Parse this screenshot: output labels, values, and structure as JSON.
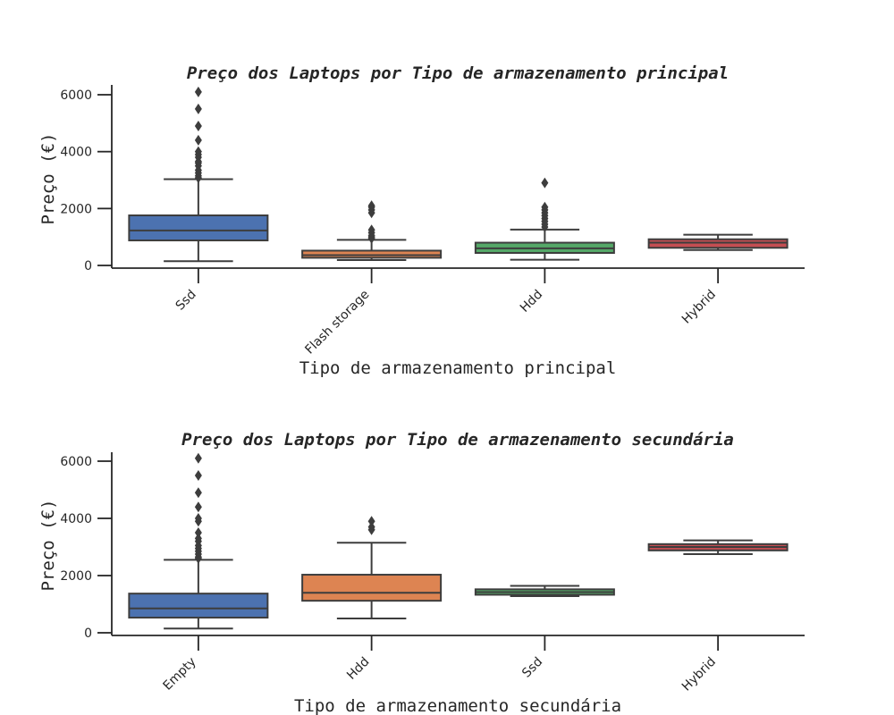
{
  "chart_data": [
    {
      "type": "box",
      "title": "Preço dos Laptops por Tipo de armazenamento principal",
      "xlabel": "Tipo de armazenamento principal",
      "ylabel": "Preço (€)",
      "ylim": [
        -100,
        6400
      ],
      "yticks": [
        0,
        2000,
        4000,
        6000
      ],
      "categories": [
        "Ssd",
        "Flash storage",
        "Hdd",
        "Hybrid"
      ],
      "colors": [
        "#4c72b0",
        "#dd8452",
        "#55a868",
        "#c44e52"
      ],
      "boxes": [
        {
          "whislo": 150,
          "q1": 880,
          "med": 1230,
          "q3": 1760,
          "whishi": 3030,
          "fliers": [
            3080,
            3150,
            3250,
            3350,
            3500,
            3600,
            3650,
            3800,
            3900,
            4000,
            4400,
            4900,
            5500,
            6100
          ]
        },
        {
          "whislo": 190,
          "q1": 270,
          "med": 360,
          "q3": 520,
          "whishi": 900,
          "fliers": [
            950,
            1000,
            1050,
            1150,
            1250,
            1850,
            1950,
            2050,
            2100
          ]
        },
        {
          "whislo": 200,
          "q1": 440,
          "med": 600,
          "q3": 800,
          "whishi": 1260,
          "fliers": [
            1350,
            1450,
            1550,
            1650,
            1750,
            1850,
            1950,
            2050,
            2900
          ]
        },
        {
          "whislo": 540,
          "q1": 620,
          "med": 800,
          "q3": 920,
          "whishi": 1080,
          "fliers": []
        }
      ]
    },
    {
      "type": "box",
      "title": "Preço dos Laptops por Tipo de armazenamento secundária",
      "xlabel": "Tipo de armazenamento secundária",
      "ylabel": "Preço (€)",
      "ylim": [
        -100,
        6400
      ],
      "yticks": [
        0,
        2000,
        4000,
        6000
      ],
      "categories": [
        "Empty",
        "Hdd",
        "Ssd",
        "Hybrid"
      ],
      "colors": [
        "#4c72b0",
        "#dd8452",
        "#55a868",
        "#c44e52"
      ],
      "boxes": [
        {
          "whislo": 150,
          "q1": 530,
          "med": 850,
          "q3": 1370,
          "whishi": 2550,
          "fliers": [
            2600,
            2650,
            2750,
            2850,
            2950,
            3050,
            3200,
            3300,
            3500,
            3900,
            4000,
            4400,
            4900,
            5500,
            6100
          ]
        },
        {
          "whislo": 500,
          "q1": 1120,
          "med": 1400,
          "q3": 2030,
          "whishi": 3150,
          "fliers": [
            3600,
            3700,
            3900
          ]
        },
        {
          "whislo": 1280,
          "q1": 1330,
          "med": 1420,
          "q3": 1520,
          "whishi": 1640,
          "fliers": []
        },
        {
          "whislo": 2750,
          "q1": 2880,
          "med": 3000,
          "q3": 3100,
          "whishi": 3230,
          "fliers": []
        }
      ]
    }
  ]
}
